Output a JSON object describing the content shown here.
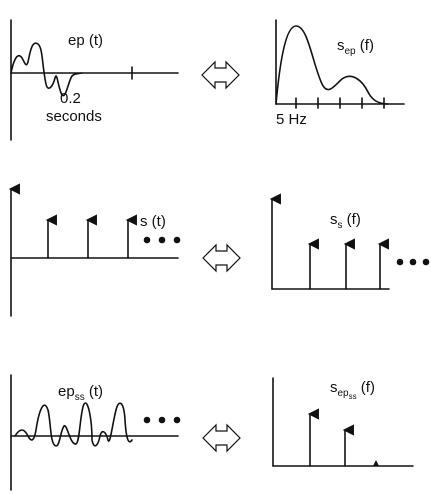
{
  "row1": {
    "left_label_main": "ep",
    "left_label_arg": "(t)",
    "duration_value": "0.2",
    "duration_unit": "seconds",
    "right_label_main": "s",
    "right_label_sub": "ep",
    "right_label_arg": "(f)",
    "freq_marker": "5 Hz"
  },
  "row2": {
    "left_label_main": "s",
    "left_label_arg": "(t)",
    "right_label_main": "s",
    "right_label_sub": "s",
    "right_label_arg": "(f)"
  },
  "row3": {
    "left_label_main": "ep",
    "left_label_sub": "ss",
    "left_label_arg": "(t)",
    "right_label_main": "s",
    "right_label_sub": "ep",
    "right_label_subsub": "ss",
    "right_label_arg": "(f)"
  },
  "icons": {
    "equivalence": "double-headed-arrow-icon",
    "continuation": "ellipsis-dots-icon",
    "impulse": "arrow-up-icon"
  }
}
